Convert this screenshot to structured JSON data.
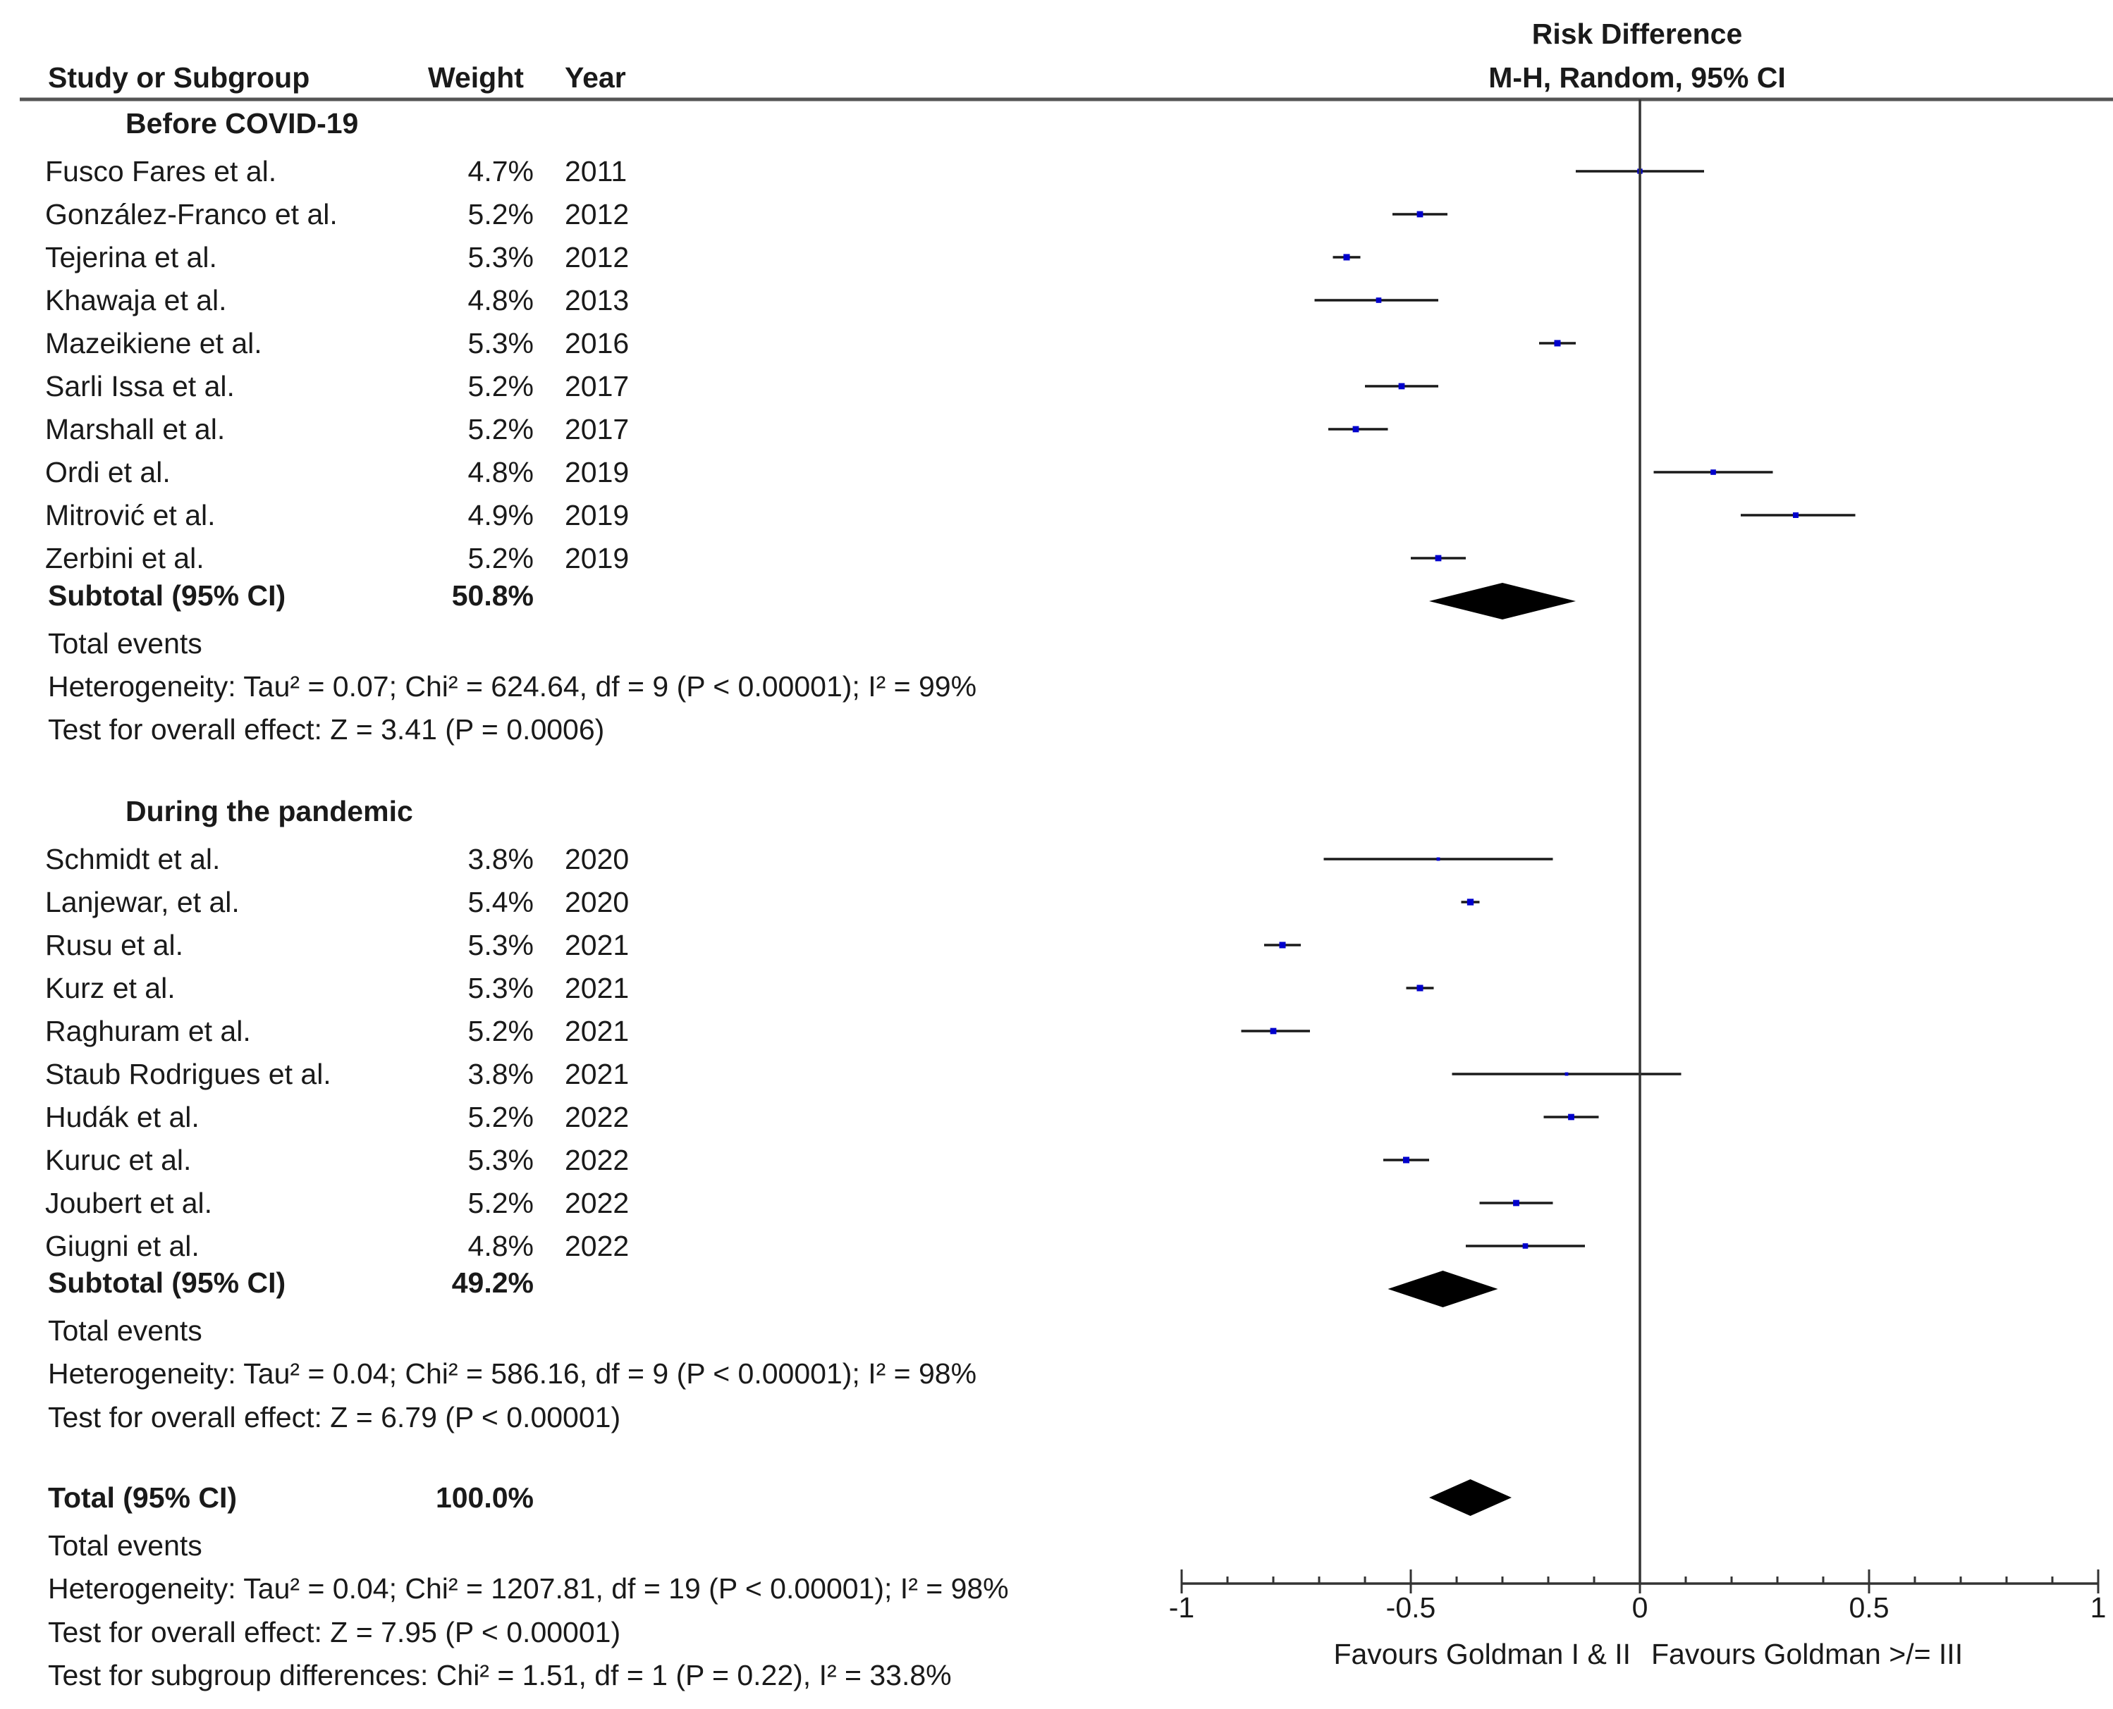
{
  "chart_data": {
    "type": "forest",
    "effect_measure": "Risk Difference",
    "method": "M-H, Random, 95% CI",
    "columns": {
      "study": "Study or Subgroup",
      "weight": "Weight",
      "year": "Year",
      "effect_title": "Risk Difference",
      "effect_method": "M-H, Random, 95% CI"
    },
    "x_axis": {
      "xlim": [
        -1,
        1
      ],
      "ticks": [
        -1,
        -0.5,
        0,
        0.5,
        1
      ],
      "tick_labels": [
        "-1",
        "-0.5",
        "0",
        "0.5",
        "1"
      ],
      "favours_left": "Favours Goldman I & II",
      "favours_right": "Favours Goldman >/= III"
    },
    "subgroups": [
      {
        "name": "Before COVID-19",
        "studies": [
          {
            "name": "Fusco Fares et al.",
            "weight": "4.7%",
            "year": "2011",
            "rd": 0.0,
            "lo": -0.14,
            "hi": 0.14
          },
          {
            "name": "González-Franco et al.",
            "weight": "5.2%",
            "year": "2012",
            "rd": -0.48,
            "lo": -0.54,
            "hi": -0.42
          },
          {
            "name": "Tejerina et al.",
            "weight": "5.3%",
            "year": "2012",
            "rd": -0.64,
            "lo": -0.67,
            "hi": -0.61
          },
          {
            "name": "Khawaja et al.",
            "weight": "4.8%",
            "year": "2013",
            "rd": -0.57,
            "lo": -0.71,
            "hi": -0.44
          },
          {
            "name": "Mazeikiene et al.",
            "weight": "5.3%",
            "year": "2016",
            "rd": -0.18,
            "lo": -0.22,
            "hi": -0.14
          },
          {
            "name": "Sarli Issa et al.",
            "weight": "5.2%",
            "year": "2017",
            "rd": -0.52,
            "lo": -0.6,
            "hi": -0.44
          },
          {
            "name": "Marshall et al.",
            "weight": "5.2%",
            "year": "2017",
            "rd": -0.62,
            "lo": -0.68,
            "hi": -0.55
          },
          {
            "name": "Ordi et al.",
            "weight": "4.8%",
            "year": "2019",
            "rd": 0.16,
            "lo": 0.03,
            "hi": 0.29
          },
          {
            "name": "Mitrović et al.",
            "weight": "4.9%",
            "year": "2019",
            "rd": 0.34,
            "lo": 0.22,
            "hi": 0.47
          },
          {
            "name": "Zerbini et al.",
            "weight": "5.2%",
            "year": "2019",
            "rd": -0.44,
            "lo": -0.5,
            "hi": -0.38
          }
        ],
        "subtotal": {
          "label": "Subtotal (95% CI)",
          "weight": "50.8%",
          "rd": -0.3,
          "lo": -0.46,
          "hi": -0.14
        },
        "total_events": "Total events",
        "heterogeneity": "Heterogeneity: Tau² = 0.07; Chi² = 624.64, df = 9 (P < 0.00001); I² = 99%",
        "overall_effect": "Test for overall effect: Z = 3.41 (P = 0.0006)"
      },
      {
        "name": "During the pandemic",
        "studies": [
          {
            "name": "Schmidt et al.",
            "weight": "3.8%",
            "year": "2020",
            "rd": -0.44,
            "lo": -0.69,
            "hi": -0.19
          },
          {
            "name": "Lanjewar, et al.",
            "weight": "5.4%",
            "year": "2020",
            "rd": -0.37,
            "lo": -0.39,
            "hi": -0.35
          },
          {
            "name": "Rusu  et al.",
            "weight": "5.3%",
            "year": "2021",
            "rd": -0.78,
            "lo": -0.82,
            "hi": -0.74
          },
          {
            "name": "Kurz et al.",
            "weight": "5.3%",
            "year": "2021",
            "rd": -0.48,
            "lo": -0.51,
            "hi": -0.45
          },
          {
            "name": "Raghuram et al.",
            "weight": "5.2%",
            "year": "2021",
            "rd": -0.8,
            "lo": -0.87,
            "hi": -0.72
          },
          {
            "name": "Staub Rodrigues et al.",
            "weight": "3.8%",
            "year": "2021",
            "rd": -0.16,
            "lo": -0.41,
            "hi": 0.09
          },
          {
            "name": "Hudák et al.",
            "weight": "5.2%",
            "year": "2022",
            "rd": -0.15,
            "lo": -0.21,
            "hi": -0.09
          },
          {
            "name": "Kuruc et al.",
            "weight": "5.3%",
            "year": "2022",
            "rd": -0.51,
            "lo": -0.56,
            "hi": -0.46
          },
          {
            "name": "Joubert et al.",
            "weight": "5.2%",
            "year": "2022",
            "rd": -0.27,
            "lo": -0.35,
            "hi": -0.19
          },
          {
            "name": "Giugni et al.",
            "weight": "4.8%",
            "year": "2022",
            "rd": -0.25,
            "lo": -0.38,
            "hi": -0.12
          }
        ],
        "subtotal": {
          "label": "Subtotal (95% CI)",
          "weight": "49.2%",
          "rd": -0.43,
          "lo": -0.55,
          "hi": -0.31
        },
        "total_events": "Total events",
        "heterogeneity": "Heterogeneity: Tau² = 0.04; Chi² = 586.16, df = 9 (P < 0.00001); I² = 98%",
        "overall_effect": "Test for overall effect: Z = 6.79 (P < 0.00001)"
      }
    ],
    "total": {
      "label": "Total (95% CI)",
      "weight": "100.0%",
      "rd": -0.37,
      "lo": -0.46,
      "hi": -0.28,
      "total_events": "Total events",
      "heterogeneity": "Heterogeneity: Tau² = 0.04; Chi² = 1207.81, df = 19 (P < 0.00001); I² = 98%",
      "overall_effect": "Test for overall effect: Z = 7.95 (P < 0.00001)",
      "subgroup_differences": "Test for subgroup differences: Chi² = 1.51, df = 1 (P = 0.22), I² = 33.8%"
    },
    "colors": {
      "point": "#0000cc",
      "line": "#1a1a1a",
      "diamond": "#000000",
      "text": "#1a1a1a"
    }
  }
}
